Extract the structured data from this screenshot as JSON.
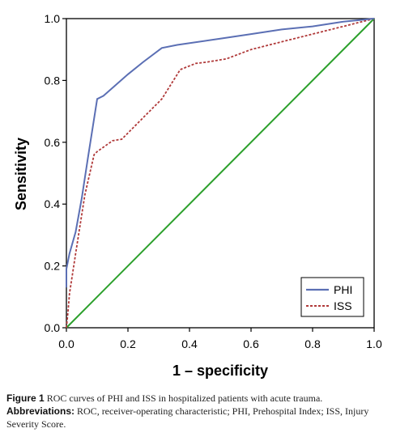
{
  "chart_data": {
    "type": "line",
    "title": "",
    "xlabel": "1 – specificity",
    "ylabel": "Sensitivity",
    "xlim": [
      0,
      1
    ],
    "ylim": [
      0,
      1
    ],
    "x_ticks": [
      "0.0",
      "0.2",
      "0.4",
      "0.6",
      "0.8",
      "1.0"
    ],
    "y_ticks": [
      "0.0",
      "0.2",
      "0.4",
      "0.6",
      "0.8",
      "1.0"
    ],
    "grid": false,
    "legend_position": "bottom-right",
    "series": [
      {
        "name": "PHI",
        "color": "#5b6fb4",
        "style": "solid",
        "points": [
          [
            0,
            0.13
          ],
          [
            0,
            0.19
          ],
          [
            0.01,
            0.24
          ],
          [
            0.03,
            0.31
          ],
          [
            0.05,
            0.42
          ],
          [
            0.07,
            0.55
          ],
          [
            0.1,
            0.74
          ],
          [
            0.12,
            0.75
          ],
          [
            0.2,
            0.82
          ],
          [
            0.25,
            0.86
          ],
          [
            0.31,
            0.905
          ],
          [
            0.36,
            0.915
          ],
          [
            0.5,
            0.935
          ],
          [
            0.6,
            0.95
          ],
          [
            0.7,
            0.965
          ],
          [
            0.8,
            0.975
          ],
          [
            0.9,
            0.99
          ],
          [
            1,
            1
          ]
        ]
      },
      {
        "name": "ISS",
        "color": "#b03a3a",
        "style": "dashed",
        "points": [
          [
            0,
            0
          ],
          [
            0.005,
            0.05
          ],
          [
            0.01,
            0.11
          ],
          [
            0.03,
            0.24
          ],
          [
            0.06,
            0.43
          ],
          [
            0.09,
            0.56
          ],
          [
            0.1,
            0.57
          ],
          [
            0.15,
            0.605
          ],
          [
            0.18,
            0.61
          ],
          [
            0.21,
            0.64
          ],
          [
            0.26,
            0.69
          ],
          [
            0.31,
            0.74
          ],
          [
            0.37,
            0.835
          ],
          [
            0.42,
            0.855
          ],
          [
            0.46,
            0.86
          ],
          [
            0.52,
            0.87
          ],
          [
            0.6,
            0.9
          ],
          [
            0.7,
            0.925
          ],
          [
            0.8,
            0.95
          ],
          [
            0.9,
            0.975
          ],
          [
            1,
            1
          ]
        ]
      },
      {
        "name": "",
        "color": "#2ca02c",
        "style": "solid",
        "points": [
          [
            0,
            0
          ],
          [
            1,
            1
          ]
        ]
      }
    ]
  },
  "caption": {
    "figure_label": "Figure 1",
    "figure_text": " ROC curves of PHI and ISS in hospitalized patients with acute trauma.",
    "abbr_label": "Abbreviations:",
    "abbr_text": " ROC, receiver-operating characteristic; PHI, Prehospital Index; ISS, Injury Severity Score."
  }
}
